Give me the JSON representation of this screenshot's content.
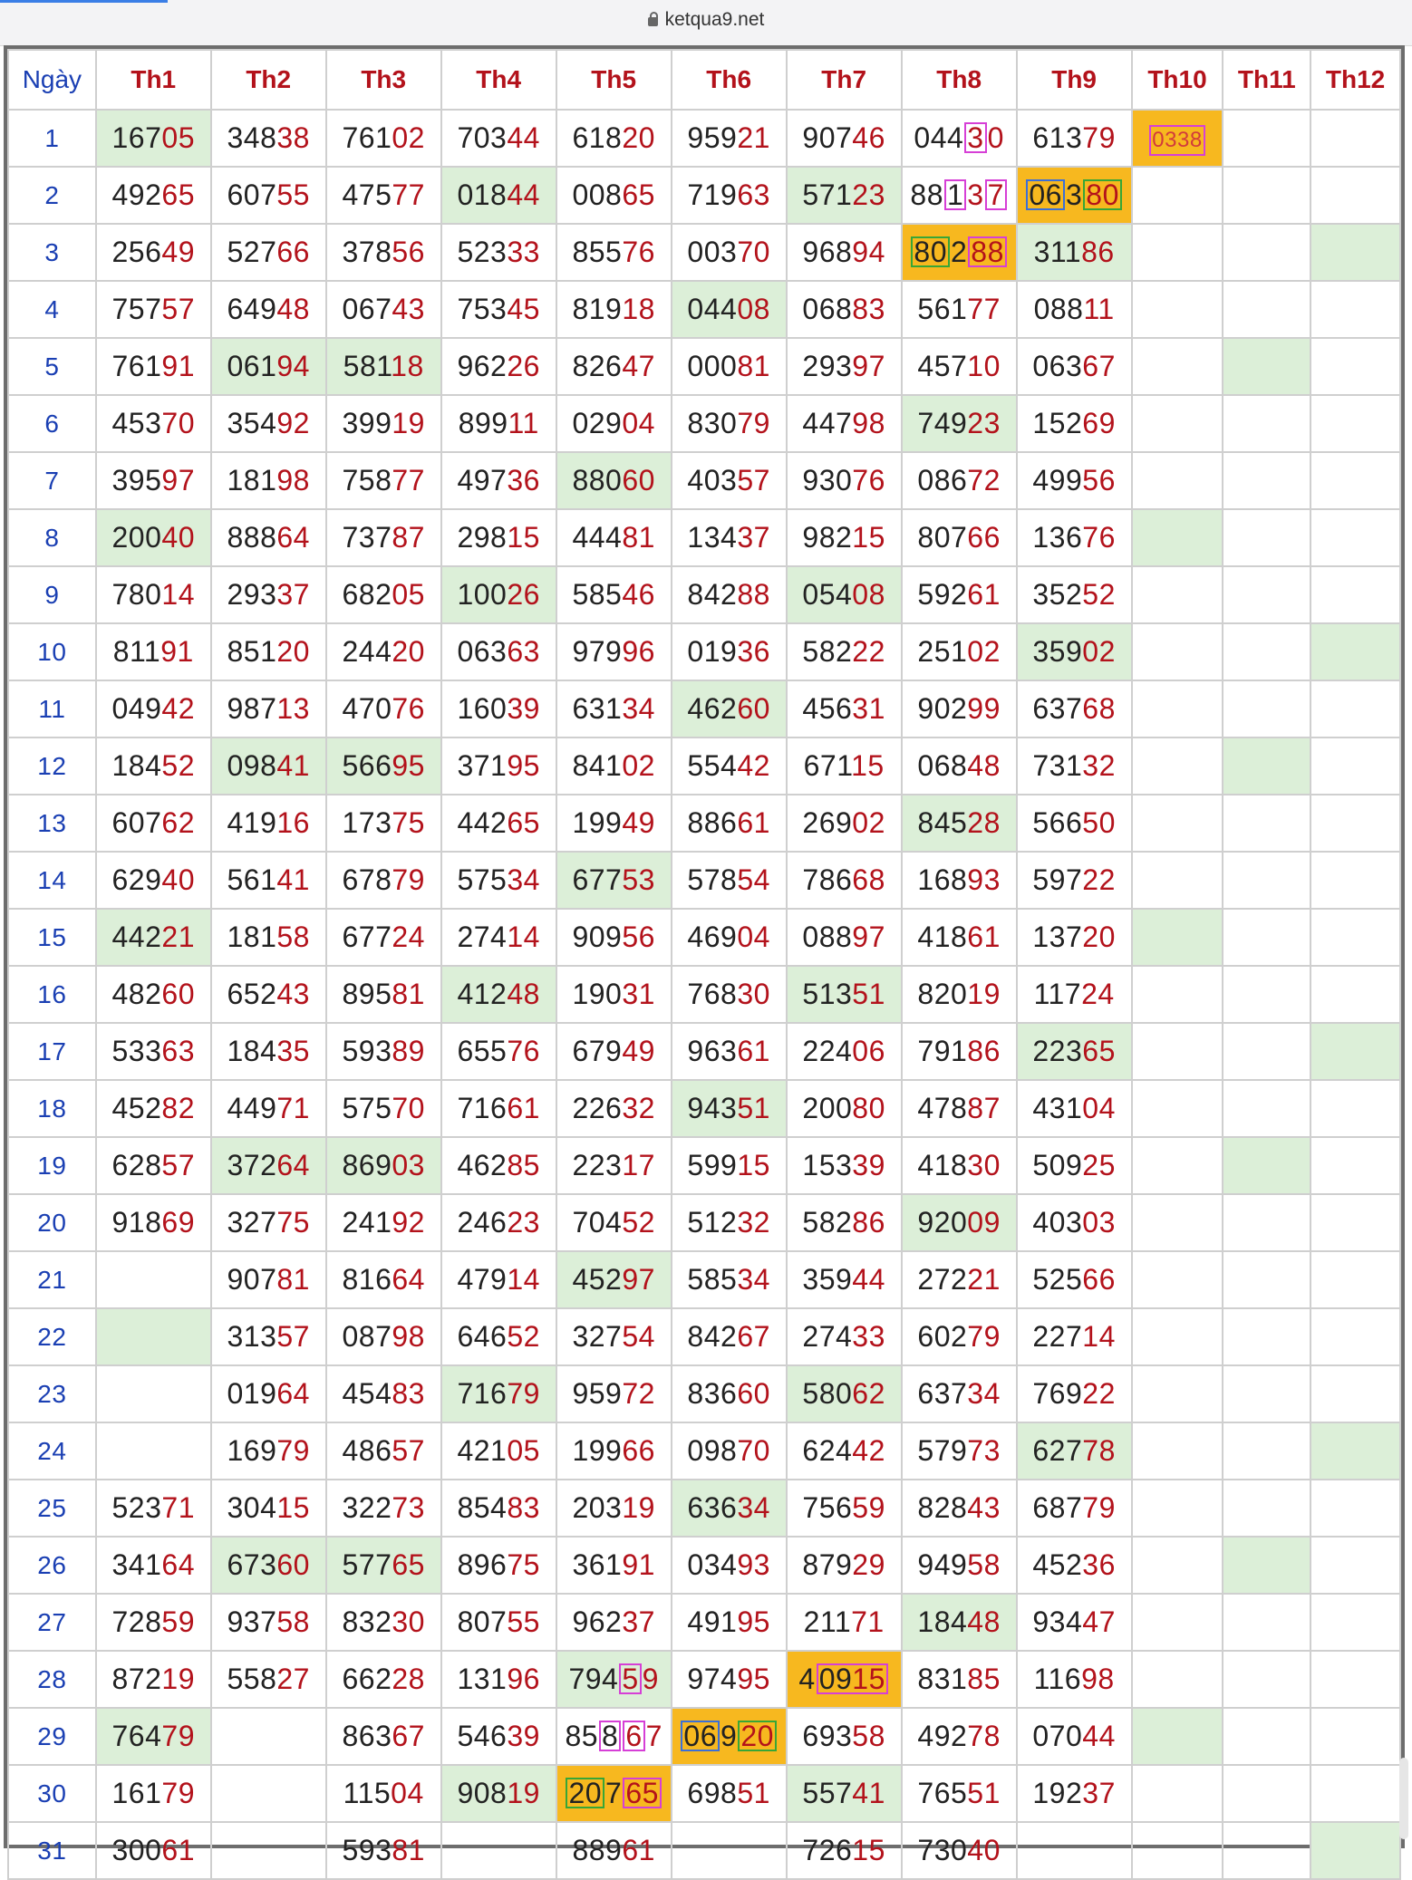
{
  "browser": {
    "url": "ketqua9.net"
  },
  "table": {
    "headers": [
      "Ngày",
      "Th1",
      "Th2",
      "Th3",
      "Th4",
      "Th5",
      "Th6",
      "Th7",
      "Th8",
      "Th9",
      "Th10",
      "Th11",
      "Th12"
    ],
    "rows": [
      [
        "1",
        "16705",
        "34838",
        "76102",
        "70344",
        "61820",
        "95921",
        "90746",
        "04430",
        "61379",
        "0338",
        "",
        ""
      ],
      [
        "2",
        "49265",
        "60755",
        "47577",
        "01844",
        "00865",
        "71963",
        "57123",
        "88137",
        "06380",
        "",
        "",
        ""
      ],
      [
        "3",
        "25649",
        "52766",
        "37856",
        "52333",
        "85576",
        "00370",
        "96894",
        "80288",
        "31186",
        "",
        "",
        ""
      ],
      [
        "4",
        "75757",
        "64948",
        "06743",
        "75345",
        "81918",
        "04408",
        "06883",
        "56177",
        "08811",
        "",
        "",
        ""
      ],
      [
        "5",
        "76191",
        "06194",
        "58118",
        "96226",
        "82647",
        "00081",
        "29397",
        "45710",
        "06367",
        "",
        "",
        ""
      ],
      [
        "6",
        "45370",
        "35492",
        "39919",
        "89911",
        "02904",
        "83079",
        "44798",
        "74923",
        "15269",
        "",
        "",
        ""
      ],
      [
        "7",
        "39597",
        "18198",
        "75877",
        "49736",
        "88060",
        "40357",
        "93076",
        "08672",
        "49956",
        "",
        "",
        ""
      ],
      [
        "8",
        "20040",
        "88864",
        "73787",
        "29815",
        "44481",
        "13437",
        "98215",
        "80766",
        "13676",
        "",
        "",
        ""
      ],
      [
        "9",
        "78014",
        "29337",
        "68205",
        "10026",
        "58546",
        "84288",
        "05408",
        "59261",
        "35252",
        "",
        "",
        ""
      ],
      [
        "10",
        "81191",
        "85120",
        "24420",
        "06363",
        "97996",
        "01936",
        "58222",
        "25102",
        "35902",
        "",
        "",
        ""
      ],
      [
        "11",
        "04942",
        "98713",
        "47076",
        "16039",
        "63134",
        "46260",
        "45631",
        "90299",
        "63768",
        "",
        "",
        ""
      ],
      [
        "12",
        "18452",
        "09841",
        "56695",
        "37195",
        "84102",
        "55442",
        "67115",
        "06848",
        "73132",
        "",
        "",
        ""
      ],
      [
        "13",
        "60762",
        "41916",
        "17375",
        "44265",
        "19949",
        "88661",
        "26902",
        "84528",
        "56650",
        "",
        "",
        ""
      ],
      [
        "14",
        "62940",
        "56141",
        "67879",
        "57534",
        "67753",
        "57854",
        "78668",
        "16893",
        "59722",
        "",
        "",
        ""
      ],
      [
        "15",
        "44221",
        "18158",
        "67724",
        "27414",
        "90956",
        "46904",
        "08897",
        "41861",
        "13720",
        "",
        "",
        ""
      ],
      [
        "16",
        "48260",
        "65243",
        "89581",
        "41248",
        "19031",
        "76830",
        "51351",
        "82019",
        "11724",
        "",
        "",
        ""
      ],
      [
        "17",
        "53363",
        "18435",
        "59389",
        "65576",
        "67949",
        "96361",
        "22406",
        "79186",
        "22365",
        "",
        "",
        ""
      ],
      [
        "18",
        "45282",
        "44971",
        "57570",
        "71661",
        "22632",
        "94351",
        "20080",
        "47887",
        "43104",
        "",
        "",
        ""
      ],
      [
        "19",
        "62857",
        "37264",
        "86903",
        "46285",
        "22317",
        "59915",
        "15339",
        "41830",
        "50925",
        "",
        "",
        ""
      ],
      [
        "20",
        "91869",
        "32775",
        "24192",
        "24623",
        "70452",
        "51232",
        "58286",
        "92009",
        "40303",
        "",
        "",
        ""
      ],
      [
        "21",
        "",
        "90781",
        "81664",
        "47914",
        "45297",
        "58534",
        "35944",
        "27221",
        "52566",
        "",
        "",
        ""
      ],
      [
        "22",
        "",
        "31357",
        "08798",
        "64652",
        "32754",
        "84267",
        "27433",
        "60279",
        "22714",
        "",
        "",
        ""
      ],
      [
        "23",
        "",
        "01964",
        "45483",
        "71679",
        "95972",
        "83660",
        "58062",
        "63734",
        "76922",
        "",
        "",
        ""
      ],
      [
        "24",
        "",
        "16979",
        "48657",
        "42105",
        "19966",
        "09870",
        "62442",
        "57973",
        "62778",
        "",
        "",
        ""
      ],
      [
        "25",
        "52371",
        "30415",
        "32273",
        "85483",
        "20319",
        "63634",
        "75659",
        "82843",
        "68779",
        "",
        "",
        ""
      ],
      [
        "26",
        "34164",
        "67360",
        "57765",
        "89675",
        "36191",
        "03493",
        "87929",
        "94958",
        "45236",
        "",
        "",
        ""
      ],
      [
        "27",
        "72859",
        "93758",
        "83230",
        "80755",
        "96237",
        "49195",
        "21171",
        "18448",
        "93447",
        "",
        "",
        ""
      ],
      [
        "28",
        "87219",
        "55827",
        "66228",
        "13196",
        "79459",
        "97495",
        "40915",
        "83185",
        "11698",
        "",
        "",
        ""
      ],
      [
        "29",
        "76479",
        "",
        "86367",
        "54639",
        "85867",
        "06920",
        "69358",
        "49278",
        "07044",
        "",
        "",
        ""
      ],
      [
        "30",
        "16179",
        "",
        "11504",
        "90819",
        "20765",
        "69851",
        "55741",
        "76551",
        "19237",
        "",
        "",
        ""
      ],
      [
        "31",
        "30061",
        "",
        "59381",
        "",
        "88961",
        "",
        "72615",
        "73040",
        "",
        "",
        "",
        ""
      ]
    ]
  },
  "colors": {
    "tail": "#b3121b",
    "day": "#1a3fb3",
    "highlight_green": "#dcefd8",
    "highlight_orange": "#f7b81f"
  }
}
